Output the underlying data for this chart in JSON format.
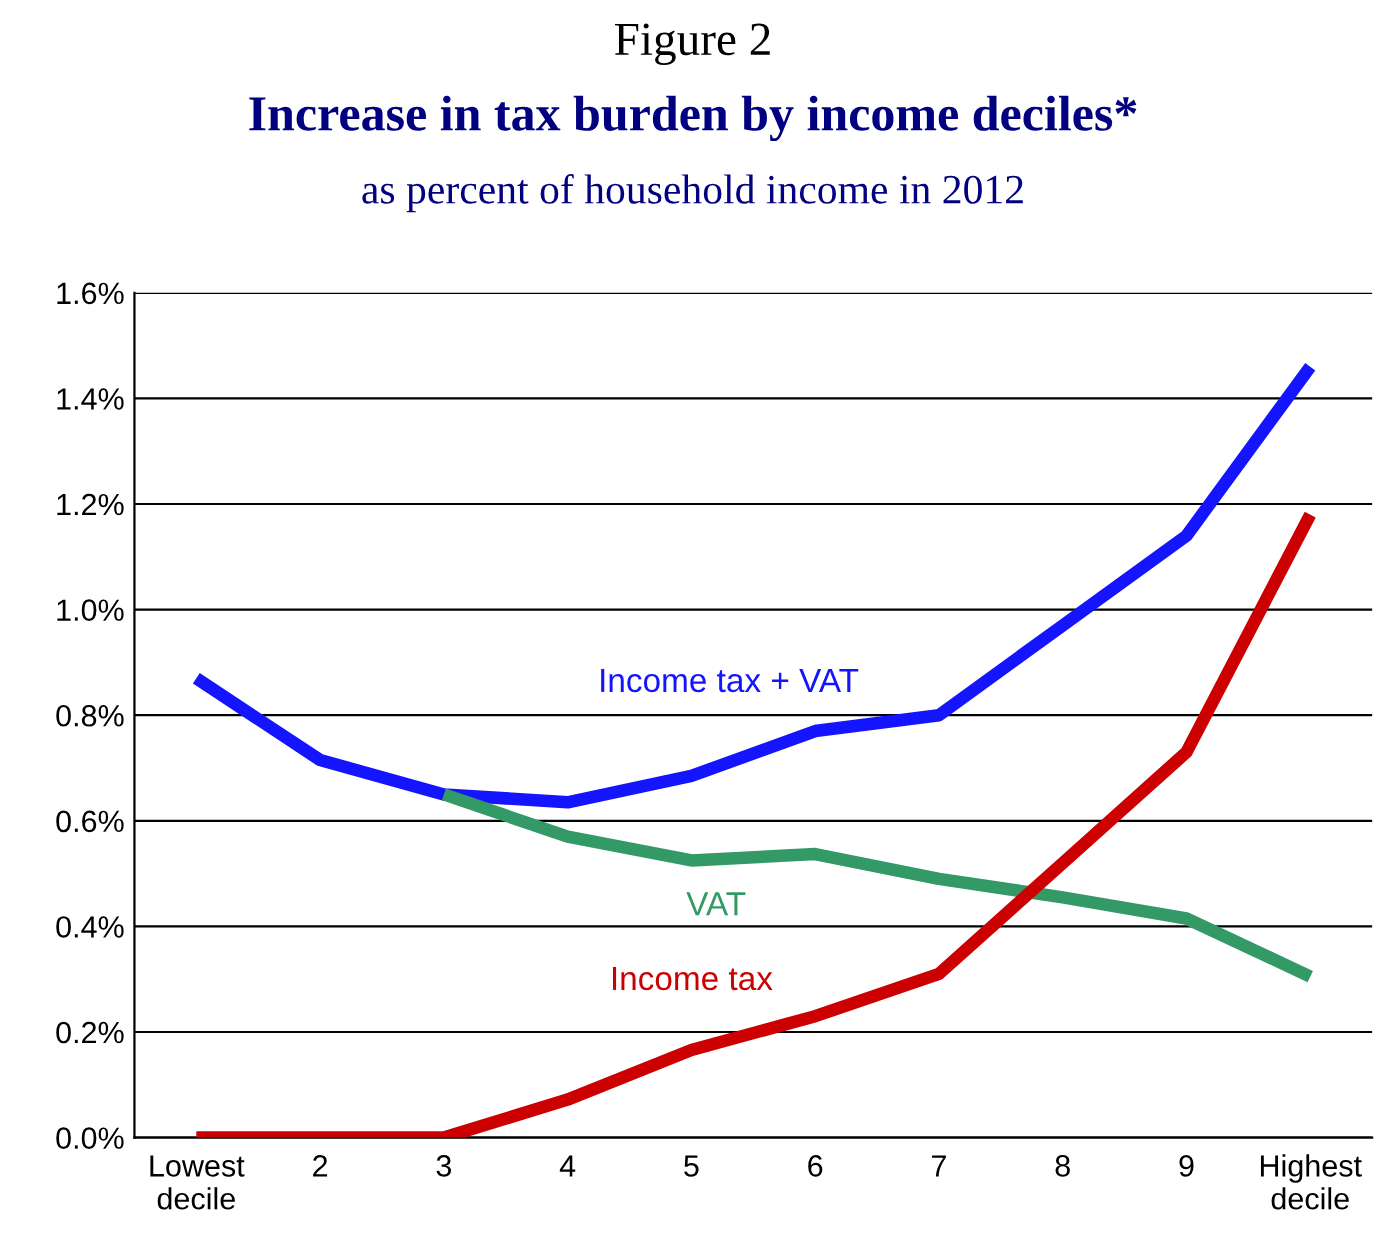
{
  "chart_data": {
    "type": "line",
    "title": "Increase in tax burden by income deciles*",
    "subtitle": "as percent of household income in 2012",
    "annotations": [
      "Figure 2"
    ],
    "categories": [
      "Lowest\ndecile",
      "2",
      "3",
      "4",
      "5",
      "6",
      "7",
      "8",
      "9",
      "Highest\ndecile"
    ],
    "series": [
      {
        "name": "Income tax + VAT",
        "color": "#1414ff",
        "values": [
          0.87,
          0.715,
          0.65,
          0.635,
          0.685,
          0.77,
          0.8,
          0.97,
          1.14,
          1.46
        ]
      },
      {
        "name": "VAT",
        "color": "#339966",
        "values": [
          null,
          null,
          0.65,
          0.57,
          0.525,
          0.537,
          0.49,
          0.455,
          0.415,
          0.305
        ]
      },
      {
        "name": "Income tax",
        "color": "#cc0000",
        "values": [
          0,
          0,
          0,
          0.072,
          0.166,
          0.23,
          0.31,
          0.52,
          0.73,
          1.18
        ]
      }
    ],
    "ylim": [
      0,
      1.6
    ],
    "yticks": [
      {
        "value": 0,
        "label": "0.0%"
      },
      {
        "value": 0.2,
        "label": "0.2%"
      },
      {
        "value": 0.4,
        "label": "0.4%"
      },
      {
        "value": 0.6,
        "label": "0.6%"
      },
      {
        "value": 0.8,
        "label": "0.8%"
      },
      {
        "value": 1.0,
        "label": "1.0%"
      },
      {
        "value": 1.2,
        "label": "1.2%"
      },
      {
        "value": 1.4,
        "label": "1.4%"
      },
      {
        "value": 1.6,
        "label": "1.6%"
      }
    ],
    "grid": "y",
    "legend": false,
    "marker": "none",
    "line_style": "solid"
  }
}
